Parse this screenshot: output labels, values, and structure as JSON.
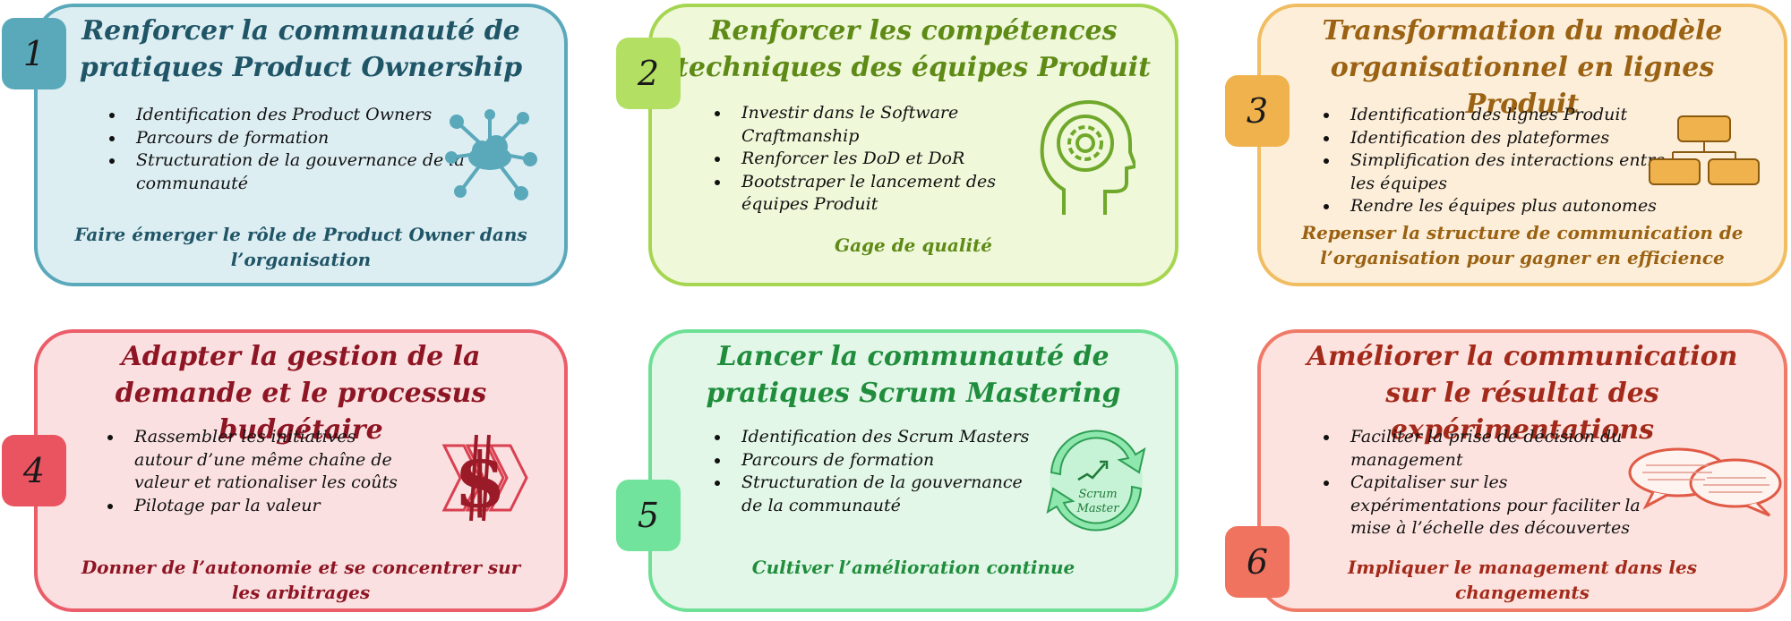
{
  "cards": [
    {
      "number": "1",
      "title": "Renforcer la communauté de pratiques Product Ownership",
      "bullets": [
        "Identification des Product Owners",
        "Parcours de formation",
        "Structuration de la gouvernance de la communauté"
      ],
      "footer": "Faire émerger le rôle de Product Owner dans l’organisation",
      "icon": "cloud-network-icon",
      "color": "#5aa9bb"
    },
    {
      "number": "2",
      "title": "Renforcer les compétences techniques des équipes Produit",
      "bullets": [
        "Investir dans le Software Craftmanship",
        "Renforcer les DoD et DoR",
        "Bootstraper le lancement des équipes Produit"
      ],
      "footer": "Gage de qualité",
      "icon": "head-gear-icon",
      "color": "#a6d651"
    },
    {
      "number": "3",
      "title": "Transformation du modèle organisationnel en lignes Produit",
      "bullets": [
        "Identification des lignes Produit",
        "Identification des plateformes",
        "Simplification des interactions entre les équipes",
        "Rendre les équipes plus autonomes"
      ],
      "footer": "Repenser la structure de communication de l’organisation pour gagner en efficience",
      "icon": "org-chart-icon",
      "color": "#f0bd63"
    },
    {
      "number": "4",
      "title": "Adapter la gestion de la demande et le processus budgétaire",
      "bullets": [
        "Rassembler les initiatives autour d’une même chaîne de valeur et rationaliser les coûts",
        "Pilotage par la valeur"
      ],
      "footer": "Donner de l’autonomie et se concentrer sur les arbitrages",
      "icon": "dollar-chevrons-icon",
      "color": "#ea5d69"
    },
    {
      "number": "5",
      "title": "Lancer la communauté de pratiques Scrum Mastering",
      "bullets": [
        "Identification des Scrum Masters",
        "Parcours de formation",
        "Structuration de la gouvernance de la communauté"
      ],
      "footer": "Cultiver l’amélioration continue",
      "icon": "scrum-cycle-icon",
      "icon_label_1": "Scrum",
      "icon_label_2": "Master",
      "color": "#6ee096"
    },
    {
      "number": "6",
      "title": "Améliorer la communication sur le résultat des expérimentations",
      "bullets": [
        "Faciliter la prise de décision du management",
        "Capitaliser sur les expérimentations pour faciliter la mise à l’échelle des découvertes"
      ],
      "footer": "Impliquer le management dans les changements",
      "icon": "speech-bubbles-icon",
      "color": "#f07a68"
    }
  ]
}
